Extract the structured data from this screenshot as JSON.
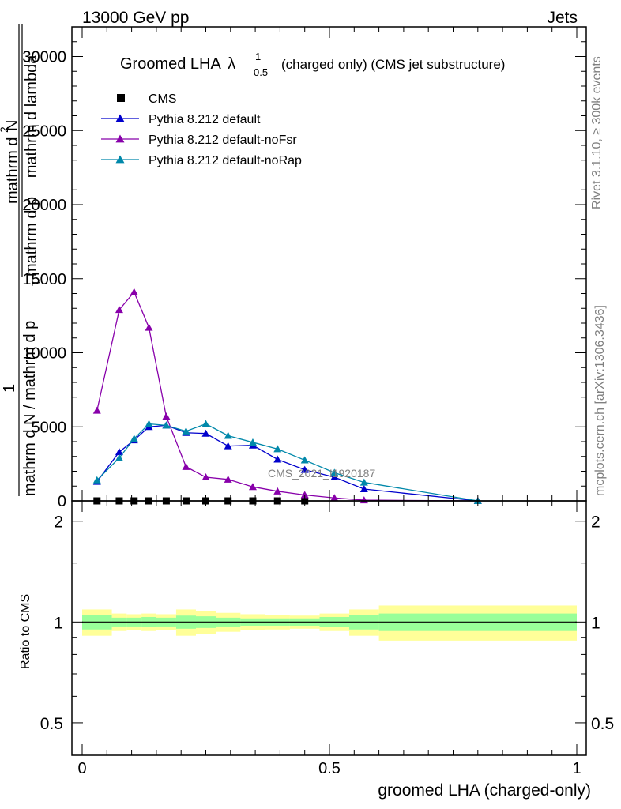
{
  "header": {
    "energy": "13000 GeV pp",
    "category": "Jets",
    "side_version": "Rivet 3.1.10, ≥ 300k events",
    "side_site": "mcplots.cern.ch [arXiv:1306.3436]"
  },
  "main_plot": {
    "title_main": "Groomed LHA",
    "title_symbol": "λ",
    "title_sup": "1",
    "title_sub": "0.5",
    "title_suffix": "(charged only) (CMS jet substructure)",
    "watermark": "CMS_2021_I1920187",
    "ylabel_parts": {
      "one": "1",
      "denom_main": "mathrm d N / mathrm d p",
      "denom_sub": "T",
      "num_main": "mathrm d",
      "num_sup": "2",
      "num_N": "N",
      "denom2_main": "mathrm d p",
      "denom2_tail": "mathrm d lambda"
    },
    "yticks": [
      "0",
      "5000",
      "10000",
      "15000",
      "20000",
      "25000",
      "30000"
    ]
  },
  "ratio_plot": {
    "ylabel": "Ratio to CMS",
    "yticks": [
      "0.5",
      "1",
      "2"
    ]
  },
  "xaxis": {
    "label": "groomed LHA (charged-only)",
    "ticks": [
      "0",
      "0.5",
      "1"
    ]
  },
  "chart_data": {
    "type": "line",
    "xlim": [
      0,
      1
    ],
    "ylim": [
      0,
      32000
    ],
    "ratio_ylim": [
      0.4,
      2.3
    ],
    "legend_position": "top-left",
    "series": [
      {
        "name": "CMS",
        "color": "#000000",
        "marker": "square",
        "x": [
          0.03,
          0.075,
          0.105,
          0.135,
          0.17,
          0.21,
          0.25,
          0.295,
          0.345,
          0.395,
          0.45
        ],
        "y": [
          0,
          0,
          0,
          0,
          0,
          0,
          0,
          0,
          0,
          0,
          0
        ]
      },
      {
        "name": "Pythia 8.212 default",
        "color": "#0000cc",
        "marker": "triangle",
        "x": [
          0.03,
          0.075,
          0.105,
          0.135,
          0.17,
          0.21,
          0.25,
          0.295,
          0.345,
          0.395,
          0.45,
          0.51,
          0.57,
          0.8
        ],
        "y": [
          1300,
          3300,
          4100,
          5000,
          5100,
          4600,
          4550,
          3700,
          3750,
          2800,
          2100,
          1600,
          800,
          0
        ]
      },
      {
        "name": "Pythia 8.212 default-noFsr",
        "color": "#8800aa",
        "marker": "triangle",
        "x": [
          0.03,
          0.075,
          0.105,
          0.135,
          0.17,
          0.21,
          0.25,
          0.295,
          0.345,
          0.395,
          0.45,
          0.51,
          0.57,
          0.8
        ],
        "y": [
          6100,
          12900,
          14100,
          11700,
          5700,
          2300,
          1600,
          1450,
          950,
          650,
          400,
          200,
          50,
          0
        ]
      },
      {
        "name": "Pythia 8.212 default-noRap",
        "color": "#0088aa",
        "marker": "triangle",
        "x": [
          0.03,
          0.075,
          0.105,
          0.135,
          0.17,
          0.21,
          0.25,
          0.295,
          0.345,
          0.395,
          0.45,
          0.51,
          0.57,
          0.8
        ],
        "y": [
          1400,
          2900,
          4200,
          5200,
          5100,
          4700,
          5200,
          4400,
          3950,
          3500,
          2750,
          1900,
          1250,
          0
        ]
      }
    ],
    "ratio_bands": {
      "bin_edges": [
        0,
        0.06,
        0.09,
        0.12,
        0.15,
        0.19,
        0.23,
        0.27,
        0.32,
        0.37,
        0.42,
        0.48,
        0.54,
        0.6,
        1.0
      ],
      "inner_halfwidth": [
        0.05,
        0.03,
        0.03,
        0.035,
        0.03,
        0.045,
        0.04,
        0.03,
        0.025,
        0.025,
        0.025,
        0.035,
        0.05,
        0.06
      ],
      "outer_halfwidth": [
        0.09,
        0.06,
        0.055,
        0.06,
        0.055,
        0.09,
        0.08,
        0.065,
        0.055,
        0.05,
        0.045,
        0.06,
        0.09,
        0.12
      ],
      "inner_color": "#99ff99",
      "outer_color": "#ffff99"
    }
  }
}
